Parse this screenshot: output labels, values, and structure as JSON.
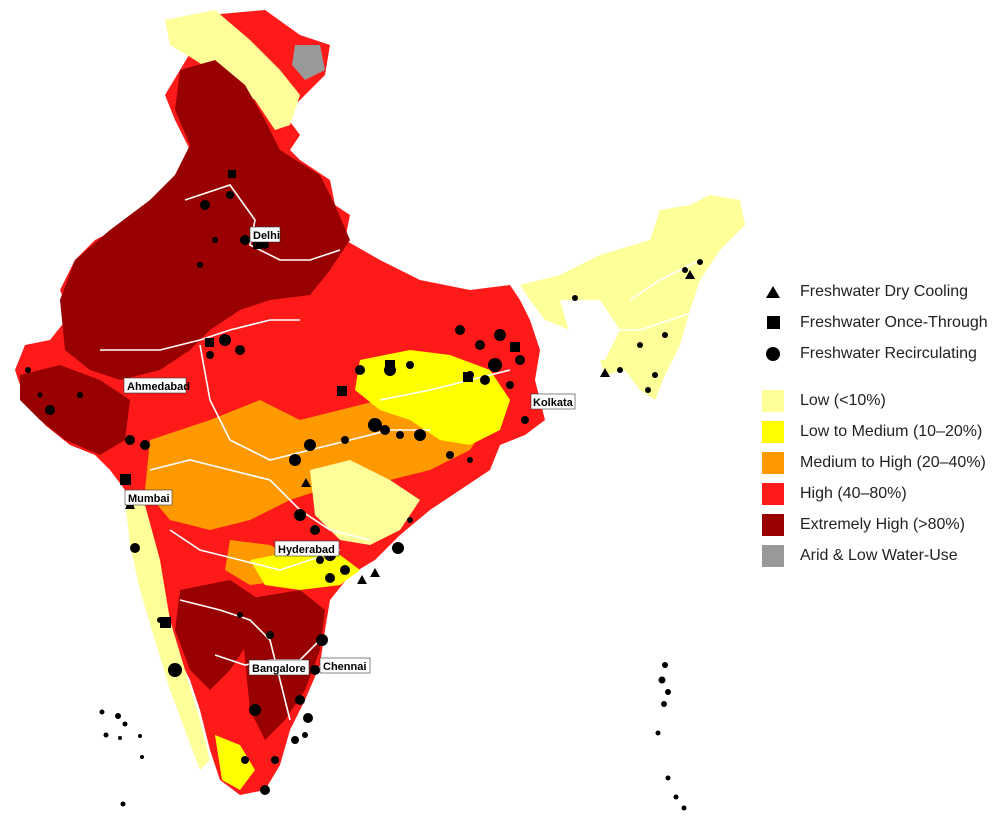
{
  "colors": {
    "low": "#ffff99",
    "low_to_medium": "#ffff00",
    "medium_to_high": "#ff9900",
    "high": "#ff1a1a",
    "extremely_high": "#990000",
    "arid": "#999999",
    "boundary": "#ffffff",
    "plant": "#000000"
  },
  "cities": [
    {
      "name": "Delhi"
    },
    {
      "name": "Ahmedabad"
    },
    {
      "name": "Kolkata"
    },
    {
      "name": "Mumbai"
    },
    {
      "name": "Hyderabad"
    },
    {
      "name": "Bangalore"
    },
    {
      "name": "Chennai"
    }
  ],
  "legend": {
    "plant_types": [
      {
        "label": "Freshwater Dry Cooling",
        "symbol": "triangle"
      },
      {
        "label": "Freshwater Once-Through",
        "symbol": "square"
      },
      {
        "label": "Freshwater Recirculating",
        "symbol": "circle"
      }
    ],
    "stress_levels": [
      {
        "label": "Low (<10%)",
        "color": "#ffff99"
      },
      {
        "label": "Low to Medium (10–20%)",
        "color": "#ffff00"
      },
      {
        "label": "Medium to High (20–40%)",
        "color": "#ff9900"
      },
      {
        "label": "High (40–80%)",
        "color": "#ff1a1a"
      },
      {
        "label": "Extremely High (>80%)",
        "color": "#990000"
      },
      {
        "label": "Arid & Low Water-Use",
        "color": "#999999"
      }
    ]
  }
}
